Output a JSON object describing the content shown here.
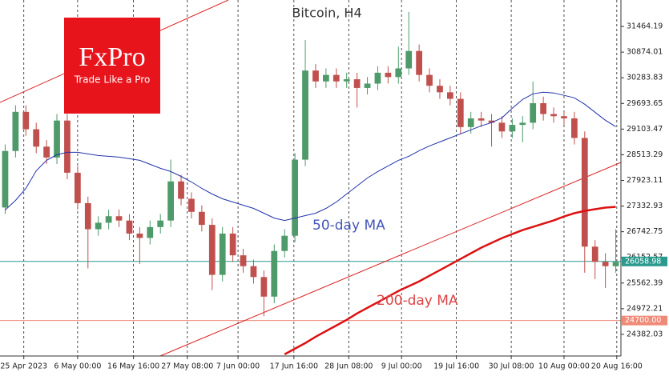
{
  "chart_data": {
    "type": "candlestick",
    "title": "Bitcoin, H4",
    "logo": {
      "name": "FxPro",
      "tagline": "Trade Like a Pro"
    },
    "up_color": "#4e9a6a",
    "down_color": "#c0504d",
    "open": [
      27300,
      28600,
      29500,
      29100,
      28700,
      28450,
      29300,
      28100,
      27400,
      26800,
      26950,
      27100,
      27000,
      26700,
      26600,
      26850,
      27000,
      27900,
      27500,
      27200,
      26900,
      25750,
      26700,
      26200,
      25950,
      25700,
      25250,
      26300,
      26650,
      28400,
      30450,
      30200,
      30350,
      30200,
      30250,
      30050,
      30150,
      30400,
      30300,
      30500,
      30900,
      30350,
      30100,
      29950,
      29800,
      29150,
      29350,
      29300,
      29250,
      29050,
      29200,
      29250,
      29700,
      29450,
      29400,
      29350,
      28900,
      26400,
      26050,
      25950
    ],
    "high": [
      28750,
      29650,
      29650,
      29250,
      28850,
      29450,
      29450,
      28250,
      27550,
      27100,
      27250,
      27250,
      27150,
      26850,
      27000,
      27150,
      28400,
      28050,
      27650,
      27350,
      27050,
      26850,
      26850,
      26350,
      26100,
      25850,
      26450,
      26800,
      28550,
      31150,
      30600,
      30500,
      30500,
      30400,
      30400,
      30300,
      30550,
      30550,
      31000,
      31800,
      31050,
      30500,
      30250,
      30100,
      29950,
      29500,
      29500,
      29450,
      29400,
      29350,
      29400,
      30200,
      29850,
      29600,
      29500,
      29500,
      29050,
      26550,
      26250,
      26800
    ],
    "low": [
      27150,
      28450,
      28950,
      28550,
      28300,
      28300,
      27950,
      27250,
      25900,
      26650,
      26800,
      26850,
      26550,
      26000,
      26450,
      26700,
      26850,
      27350,
      27050,
      26750,
      25400,
      25600,
      26050,
      25800,
      25550,
      24800,
      25100,
      26150,
      26500,
      28250,
      30050,
      30050,
      30050,
      30050,
      29600,
      29900,
      30000,
      30150,
      30150,
      30350,
      30200,
      29950,
      29800,
      29650,
      29000,
      29000,
      29150,
      28700,
      28900,
      28900,
      28800,
      29100,
      29300,
      29250,
      29200,
      28750,
      25800,
      25650,
      25450,
      25800
    ],
    "close": [
      28600,
      29500,
      29100,
      28700,
      28450,
      29300,
      28100,
      27400,
      26800,
      26950,
      27100,
      27000,
      26700,
      26600,
      26850,
      27000,
      27900,
      27500,
      27200,
      26900,
      25750,
      26700,
      26200,
      25950,
      25700,
      25250,
      26300,
      26650,
      28400,
      30450,
      30200,
      30350,
      30200,
      30250,
      30050,
      30150,
      30400,
      30300,
      30500,
      30900,
      30350,
      30100,
      29950,
      29800,
      29150,
      29350,
      29300,
      29250,
      29050,
      29200,
      29250,
      29700,
      29450,
      29400,
      29350,
      28900,
      26400,
      26050,
      25950,
      26050
    ],
    "series": [
      {
        "name": "50-day MA",
        "color": "#2233aa",
        "values": [
          27242,
          27463,
          27740,
          28145,
          28385,
          28514,
          28570,
          28570,
          28533,
          28496,
          28477,
          28459,
          28422,
          28385,
          28293,
          28201,
          28127,
          28016,
          27887,
          27740,
          27611,
          27500,
          27426,
          27352,
          27279,
          27168,
          27057,
          27002,
          27057,
          27113,
          27168,
          27279,
          27426,
          27611,
          27795,
          27979,
          28127,
          28256,
          28385,
          28477,
          28606,
          28717,
          28809,
          28901,
          28994,
          29086,
          29178,
          29252,
          29362,
          29584,
          29786,
          29915,
          29952,
          29934,
          29879,
          29823,
          29676,
          29491,
          29307,
          29160
        ]
      },
      {
        "name": "200-day MA",
        "color": "#dd1111",
        "values": [
          null,
          null,
          null,
          null,
          null,
          null,
          null,
          null,
          null,
          null,
          null,
          null,
          null,
          null,
          null,
          null,
          null,
          null,
          null,
          null,
          null,
          null,
          null,
          null,
          null,
          null,
          null,
          23923,
          24052,
          24181,
          24328,
          24457,
          24586,
          24716,
          24863,
          24992,
          25121,
          25250,
          25379,
          25490,
          25601,
          25730,
          25859,
          25988,
          26117,
          26246,
          26375,
          26486,
          26596,
          26689,
          26781,
          26855,
          26928,
          27002,
          27094,
          27168,
          27223,
          27260,
          27297,
          27315
        ]
      }
    ],
    "hlines": [
      {
        "value": 26058.98,
        "label": "26058.98",
        "color": "#2a9a8e"
      },
      {
        "value": 24700,
        "label": "24700.00",
        "color": "#f08a78"
      }
    ],
    "ylim": [
      23884,
      32073
    ],
    "yticks": [
      31464.19,
      30874.01,
      30283.83,
      29693.65,
      29103.47,
      28513.29,
      27923.11,
      27332.93,
      26742.75,
      26152.57,
      25562.39,
      24972.21,
      24382.03
    ],
    "xlim": [
      -0.5,
      59.5
    ],
    "xticks": [
      {
        "value": 1.8,
        "label": "25 Apr 2023"
      },
      {
        "value": 7.0,
        "label": "6 May 00:00"
      },
      {
        "value": 12.4,
        "label": "16 May 16:00"
      },
      {
        "value": 17.6,
        "label": "27 May 08:00"
      },
      {
        "value": 22.5,
        "label": "7 Jun 00:00"
      },
      {
        "value": 27.9,
        "label": "17 Jun 16:00"
      },
      {
        "value": 33.2,
        "label": "28 Jun 08:00"
      },
      {
        "value": 38.3,
        "label": "9 Jul 00:00"
      },
      {
        "value": 43.6,
        "label": "19 Jul 16:00"
      },
      {
        "value": 48.9,
        "label": "30 Jul 08:00"
      },
      {
        "value": 54.0,
        "label": "10 Aug 00:00"
      },
      {
        "value": 59.1,
        "label": "20 Aug 16:00"
      }
    ]
  }
}
